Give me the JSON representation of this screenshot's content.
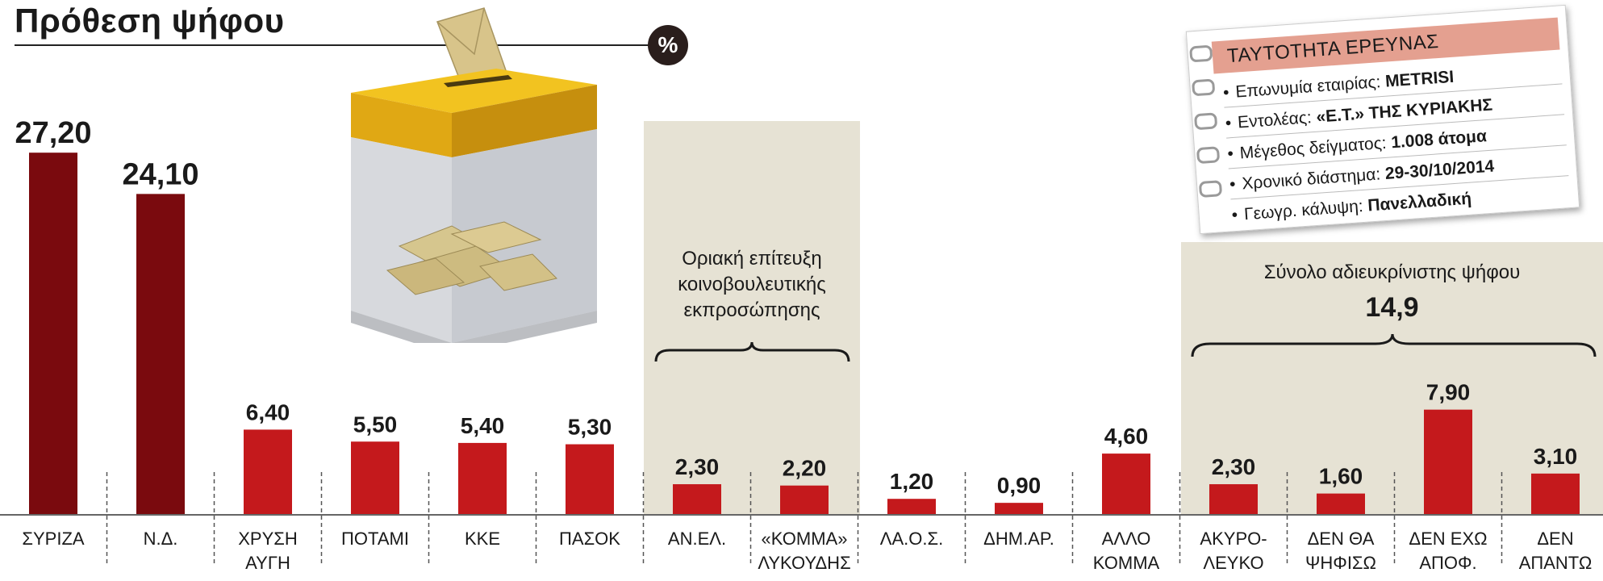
{
  "title": "Πρόθεση ψήφου",
  "unit_badge": "%",
  "info_card": {
    "heading": "ΤΑΥΤΟΤΗΤΑ ΕΡΕΥΝΑΣ",
    "rows": [
      {
        "label": "Επωνυμία εταιρίας:",
        "value": "METRISI"
      },
      {
        "label": "Εντολέας:",
        "value": "«Ε.Τ.» ΤΗΣ ΚΥΡΙΑΚΗΣ"
      },
      {
        "label": "Μέγεθος δείγματος:",
        "value": "1.008 άτομα"
      },
      {
        "label": "Χρονικό διάστημα:",
        "value": "29-30/10/2014"
      },
      {
        "label": "Γεωγρ. κάλυψη:",
        "value": "Πανελλαδική"
      }
    ]
  },
  "groups": {
    "threshold": {
      "text": [
        "Οριακή επίτευξη",
        "κοινοβουλευτικής",
        "εκπροσώπησης"
      ]
    },
    "undecided": {
      "text": "Σύνολο αδιευκρίνιστης ψήφου",
      "value": "14,9"
    }
  },
  "chart_data": {
    "type": "bar",
    "categories": [
      [
        "ΣΥΡΙΖΑ"
      ],
      [
        "Ν.Δ."
      ],
      [
        "ΧΡΥΣΗ",
        "ΑΥΓΗ"
      ],
      [
        "ΠΟΤΑΜΙ"
      ],
      [
        "ΚΚΕ"
      ],
      [
        "ΠΑΣΟΚ"
      ],
      [
        "ΑΝ.ΕΛ."
      ],
      [
        "«ΚΟΜΜΑ»",
        "ΛΥΚΟΥΔΗΣ"
      ],
      [
        "ΛΑ.Ο.Σ."
      ],
      [
        "ΔΗΜ.ΑΡ."
      ],
      [
        "ΑΛΛΟ",
        "ΚΟΜΜΑ"
      ],
      [
        "ΑΚΥΡΟ-",
        "ΛΕΥΚΟ"
      ],
      [
        "ΔΕΝ ΘΑ",
        "ΨΗΦΙΣΩ"
      ],
      [
        "ΔΕΝ ΕΧΩ",
        "ΑΠΟΦ."
      ],
      [
        "ΔΕΝ",
        "ΑΠΑΝΤΩ"
      ]
    ],
    "values": [
      27.2,
      24.1,
      6.4,
      5.5,
      5.4,
      5.3,
      2.3,
      2.2,
      1.2,
      0.9,
      4.6,
      2.3,
      1.6,
      7.9,
      3.1
    ],
    "value_labels": [
      "27,20",
      "24,10",
      "6,40",
      "5,50",
      "5,40",
      "5,30",
      "2,30",
      "2,20",
      "1,20",
      "0,90",
      "4,60",
      "2,30",
      "1,60",
      "7,90",
      "3,10"
    ],
    "colors": [
      "#7a0a0e",
      "#7a0a0e",
      "#c4191c",
      "#c4191c",
      "#c4191c",
      "#c4191c",
      "#c4191c",
      "#c4191c",
      "#c4191c",
      "#c4191c",
      "#c4191c",
      "#c4191c",
      "#c4191c",
      "#c4191c",
      "#c4191c"
    ],
    "ylabel": "%",
    "ylim": [
      0,
      28
    ]
  }
}
